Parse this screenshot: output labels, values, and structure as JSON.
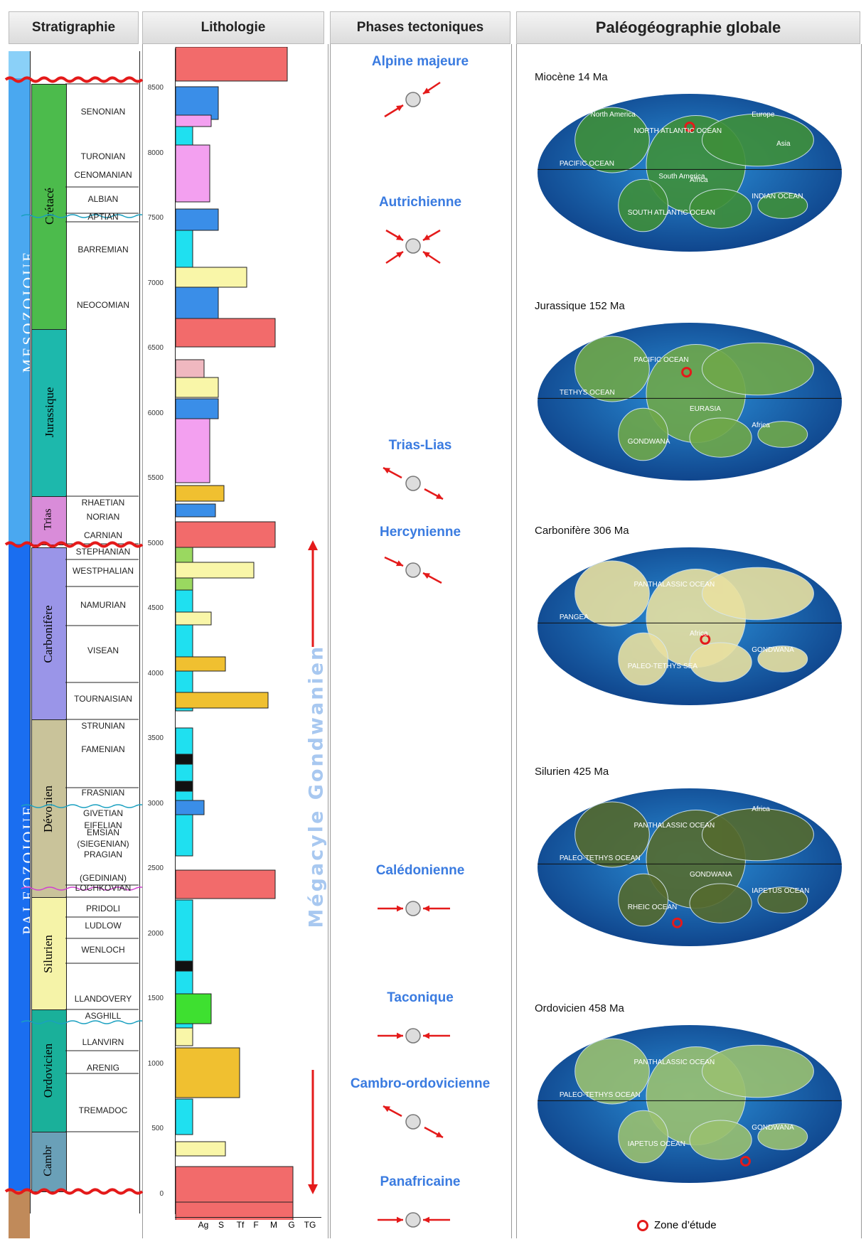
{
  "headers": {
    "stratigraphie": "Stratigraphie",
    "lithologie": "Lithologie",
    "phases": "Phases tectoniques",
    "paleo": "Paléogéographie globale"
  },
  "eras": [
    {
      "name": "MESOZOIQUE",
      "color": "#4aa8f0"
    },
    {
      "name": "PALEOZOIQUE",
      "color": "#1a6ef0"
    }
  ],
  "periods": [
    {
      "name": "Crétacé",
      "color": "#4cbb4c"
    },
    {
      "name": "Jurassique",
      "color": "#1db8ac"
    },
    {
      "name": "Trias",
      "color": "#d98cd9"
    },
    {
      "name": "Carbonifère",
      "color": "#9a95e8"
    },
    {
      "name": "Dévonien",
      "color": "#c9c39a"
    },
    {
      "name": "Silurien",
      "color": "#f5f3a8"
    },
    {
      "name": "Ordovicien",
      "color": "#1ab09a"
    },
    {
      "name": "Cambr",
      "color": "#6aa0b8"
    }
  ],
  "stages": [
    "SENONIAN",
    "TURONIAN",
    "CENOMANIAN",
    "ALBIAN",
    "APTIAN",
    "BARREMIAN",
    "NEOCOMIAN",
    "RHAETIAN",
    "NORIAN",
    "CARNIAN",
    "STEPHANIAN",
    "WESTPHALIAN",
    "NAMURIAN",
    "VISEAN",
    "TOURNAISIAN",
    "STRUNIAN",
    "FAMENIAN",
    "FRASNIAN",
    "GIVETIAN",
    "EIFELIAN",
    "EMSIAN",
    "(SIEGENIAN)",
    "PRAGIAN",
    "(GEDINIAN)",
    "LOCHKOVIAN",
    "PRIDOLI",
    "LUDLOW",
    "WENLOCH",
    "LLANDOVERY",
    "ASGHILL",
    "LLANVIRN",
    "ARENIG",
    "TREMADOC"
  ],
  "depth_ticks": [
    "8500",
    "8000",
    "7500",
    "7000",
    "6500",
    "6000",
    "5500",
    "5000",
    "4500",
    "4000",
    "3500",
    "3000",
    "2500",
    "2000",
    "1500",
    "1000",
    "500",
    "0"
  ],
  "grain_axis": [
    "Ag",
    "S",
    "Tf",
    "F",
    "M",
    "G",
    "TG"
  ],
  "megacycle": "Mégacyle Gondwanien",
  "phases": [
    {
      "name": "Alpine majeure",
      "type": "sw-ne"
    },
    {
      "name": "Autrichienne",
      "type": "cross"
    },
    {
      "name": "Trias-Lias",
      "type": "extension"
    },
    {
      "name": "Hercynienne",
      "type": "nw-se"
    },
    {
      "name": "Calédonienne",
      "type": "horizontal"
    },
    {
      "name": "Taconique",
      "type": "horizontal"
    },
    {
      "name": "Cambro-ordovicienne",
      "type": "extension"
    },
    {
      "name": "Panafricaine",
      "type": "horizontal"
    }
  ],
  "maps": [
    {
      "title": "Miocène 14 Ma",
      "labels": [
        "NORTH ATLANTIC OCEAN",
        "PACIFIC OCEAN",
        "SOUTH ATLANTIC OCEAN",
        "INDIAN OCEAN",
        "Africa",
        "Europe",
        "Asia",
        "South America",
        "North America"
      ]
    },
    {
      "title": "Jurassique 152 Ma",
      "labels": [
        "PACIFIC OCEAN",
        "TETHYS OCEAN",
        "GONDWANA",
        "Africa",
        "EURASIA"
      ]
    },
    {
      "title": "Carbonifère 306 Ma",
      "labels": [
        "PANTHALASSIC OCEAN",
        "PANGEA",
        "PALEO-TETHYS SEA",
        "GONDWANA",
        "Africa"
      ]
    },
    {
      "title": "Silurien 425 Ma",
      "labels": [
        "PANTHALASSIC OCEAN",
        "PALEO-TETHYS OCEAN",
        "RHEIC OCEAN",
        "IAPETUS OCEAN",
        "GONDWANA",
        "Africa"
      ]
    },
    {
      "title": "Ordovicien 458 Ma",
      "labels": [
        "PANTHALASSIC OCEAN",
        "PALEO-TETHYS OCEAN",
        "IAPETUS OCEAN",
        "GONDWANA"
      ]
    }
  ],
  "legend": "Zone d’étude",
  "colors": {
    "unconformity": "#e41a1a",
    "phase_title": "#3a7be0",
    "arrow": "#e41a1a"
  }
}
